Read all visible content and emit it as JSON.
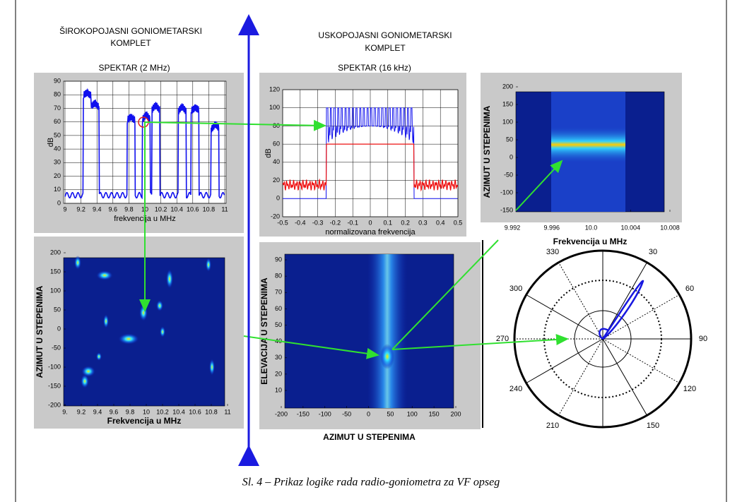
{
  "header": {
    "wide_title": [
      "ŠIROKOPOJASNI  GONIOMETARSKI",
      "KOMPLET"
    ],
    "narrow_title": [
      "USKOPOJASNI  GONIOMETARSKI",
      "KOMPLET"
    ],
    "wide_spectrum": "SPEKTAR (2 MHz)",
    "narrow_spectrum": "SPEKTAR (16 kHz)"
  },
  "panels": [
    {
      "xlabel": "frekvencija u MHz",
      "ylabel": "dB",
      "xticks": [
        9,
        9.2,
        9.4,
        9.6,
        9.8,
        10,
        10.2,
        10.4,
        10.6,
        10.8,
        11
      ],
      "yticks": [
        0,
        10,
        20,
        30,
        40,
        50,
        60,
        70,
        80,
        90
      ]
    },
    {
      "xlabel": "normalizovana frekvencija",
      "ylabel": "dB",
      "xticks": [
        -0.5,
        -0.4,
        -0.3,
        -0.2,
        -0.1,
        0,
        0.1,
        0.2,
        0.3,
        0.4,
        0.5
      ],
      "yticks": [
        -20,
        0,
        20,
        40,
        60,
        80,
        100,
        120
      ]
    },
    {
      "xlabel": "Frekvencija u MHz",
      "ylabel": "AZIMUT U STEPENIMA",
      "xticks": [
        9.992,
        9.996,
        {
          "value": 10,
          "label": "10.0"
        },
        10.004,
        10.008
      ],
      "yticks": [
        -150,
        -100,
        -50,
        0,
        50,
        100,
        150,
        200
      ]
    },
    {
      "xlabel": "Frekvencija u MHz",
      "ylabel": "AZIMUT U STEPENIMA",
      "xticks": [
        {
          "value": 9,
          "label": "9."
        },
        9.2,
        9.4,
        9.6,
        9.8,
        10,
        10.2,
        10.4,
        10.6,
        10.8,
        11
      ],
      "yticks": [
        -200,
        -150,
        -100,
        -50,
        0,
        50,
        100,
        150,
        200
      ]
    },
    {
      "xlabel": "AZIMUT U STEPENIMA",
      "ylabel": "ELEVACIJA U STEPENIMA",
      "xticks": [
        -200,
        -150,
        -100,
        -50,
        0,
        50,
        100,
        150,
        200
      ],
      "yticks": [
        10,
        20,
        30,
        40,
        50,
        60,
        70,
        80,
        90
      ]
    }
  ],
  "polar": {
    "angles": [
      30,
      60,
      90,
      120,
      150,
      210,
      240,
      270,
      300,
      330
    ]
  },
  "caption": "Sl. 4 – Prikaz logike rada radio-goniometra za VF opseg"
}
